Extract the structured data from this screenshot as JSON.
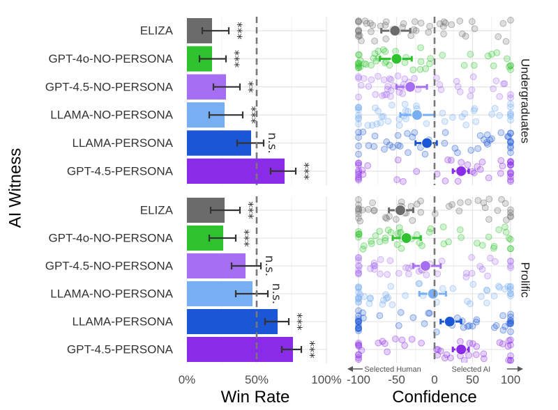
{
  "colors": {
    "ELIZA": "#6b6b6b",
    "GPT-4o-NO-PERSONA": "#2ec22e",
    "GPT-4.5-NO-PERSONA": "#a66ef2",
    "LLAMA-NO-PERSONA": "#78aef2",
    "LLAMA-PERSONA": "#1a56d6",
    "GPT-4.5-PERSONA": "#8a2be8"
  },
  "chart_data": [
    {
      "type": "bar",
      "orientation": "horizontal",
      "panel": "Undergraduates",
      "categories": [
        "ELIZA",
        "GPT-4o-NO-PERSONA",
        "GPT-4.5-NO-PERSONA",
        "LLAMA-NO-PERSONA",
        "LLAMA-PERSONA",
        "GPT-4.5-PERSONA"
      ],
      "values": [
        0.18,
        0.18,
        0.28,
        0.27,
        0.46,
        0.7
      ],
      "error_low": [
        0.11,
        0.09,
        0.19,
        0.16,
        0.36,
        0.6
      ],
      "error_high": [
        0.3,
        0.28,
        0.38,
        0.4,
        0.55,
        0.78
      ],
      "significance": [
        "***",
        "***",
        "**",
        "***",
        "n.s.",
        "***"
      ],
      "reference_line": 0.5,
      "xlabel": "Win Rate",
      "ylabel": "AI Witness",
      "xlim": [
        0,
        1
      ],
      "xticks": [
        "0%",
        "50%",
        "100%"
      ]
    },
    {
      "type": "bar",
      "orientation": "horizontal",
      "panel": "Prolific",
      "categories": [
        "ELIZA",
        "GPT-4o-NO-PERSONA",
        "GPT-4.5-NO-PERSONA",
        "LLAMA-NO-PERSONA",
        "LLAMA-PERSONA",
        "GPT-4.5-PERSONA"
      ],
      "values": [
        0.27,
        0.26,
        0.42,
        0.47,
        0.65,
        0.76
      ],
      "error_low": [
        0.17,
        0.16,
        0.32,
        0.35,
        0.56,
        0.68
      ],
      "error_high": [
        0.38,
        0.35,
        0.53,
        0.58,
        0.73,
        0.82
      ],
      "significance": [
        "***",
        "***",
        "n.s.",
        "n.s.",
        "***",
        "***"
      ],
      "reference_line": 0.5,
      "xlabel": "Win Rate",
      "ylabel": "AI Witness",
      "xlim": [
        0,
        1
      ],
      "xticks": [
        "0%",
        "50%",
        "100%"
      ]
    },
    {
      "type": "scatter",
      "subtype": "jittered points with mean and CI",
      "panel": "Undergraduates",
      "categories": [
        "ELIZA",
        "GPT-4o-NO-PERSONA",
        "GPT-4.5-NO-PERSONA",
        "LLAMA-NO-PERSONA",
        "LLAMA-PERSONA",
        "GPT-4.5-PERSONA"
      ],
      "means": [
        -52,
        -50,
        -32,
        -23,
        -10,
        35
      ],
      "ci_low": [
        -70,
        -72,
        -50,
        -45,
        -25,
        24
      ],
      "ci_high": [
        -32,
        -30,
        -10,
        0,
        3,
        45
      ],
      "reference_line": 0,
      "xlabel": "Confidence",
      "xlim": [
        -100,
        100
      ],
      "xticks": [
        "-100",
        "-50",
        "0",
        "50",
        "100"
      ],
      "direction_labels": [
        "Selected Human",
        "Selected AI"
      ]
    },
    {
      "type": "scatter",
      "subtype": "jittered points with mean and CI",
      "panel": "Prolific",
      "categories": [
        "ELIZA",
        "GPT-4o-NO-PERSONA",
        "GPT-4.5-NO-PERSONA",
        "LLAMA-NO-PERSONA",
        "LLAMA-PERSONA",
        "GPT-4.5-PERSONA"
      ],
      "means": [
        -45,
        -37,
        -12,
        -2,
        20,
        35
      ],
      "ci_low": [
        -60,
        -55,
        -28,
        -20,
        8,
        24
      ],
      "ci_high": [
        -28,
        -18,
        8,
        15,
        35,
        45
      ],
      "reference_line": 0,
      "xlabel": "Confidence",
      "xlim": [
        -100,
        100
      ],
      "xticks": [
        "-100",
        "-50",
        "0",
        "50",
        "100"
      ],
      "direction_labels": [
        "Selected Human",
        "Selected AI"
      ]
    }
  ],
  "facets": [
    "Undergraduates",
    "Prolific"
  ],
  "axis_titles": {
    "y": "AI Witness",
    "x_left": "Win Rate",
    "x_right": "Confidence"
  },
  "direction": {
    "human": "Selected Human",
    "ai": "Selected AI"
  }
}
